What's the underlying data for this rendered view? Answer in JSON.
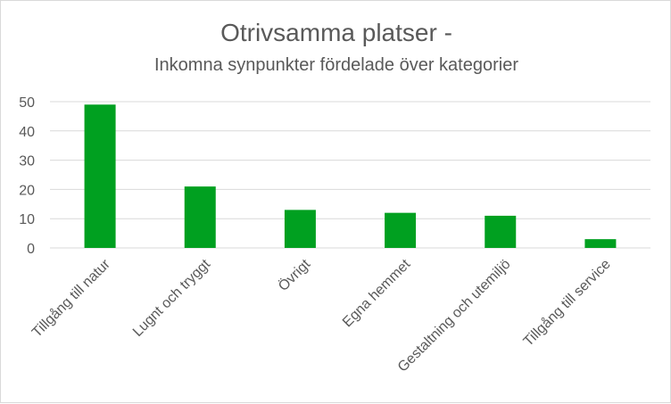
{
  "chart_data": {
    "type": "bar",
    "title": "Otrivsamma platser -",
    "subtitle": "Inkomna synpunkter fördelade över kategorier",
    "categories": [
      "Tillgång till natur",
      "Lugnt och tryggt",
      "Övrigt",
      "Egna hemmet",
      "Gestaltning och utemiljö",
      "Tillgång till service"
    ],
    "values": [
      49,
      21,
      13,
      12,
      11,
      3
    ],
    "ylim": [
      0,
      50
    ],
    "yticks": [
      0,
      10,
      20,
      30,
      40,
      50
    ],
    "grid": true,
    "legend": "none",
    "bar_color": "#00a020",
    "grid_color": "#d9d9d9"
  }
}
